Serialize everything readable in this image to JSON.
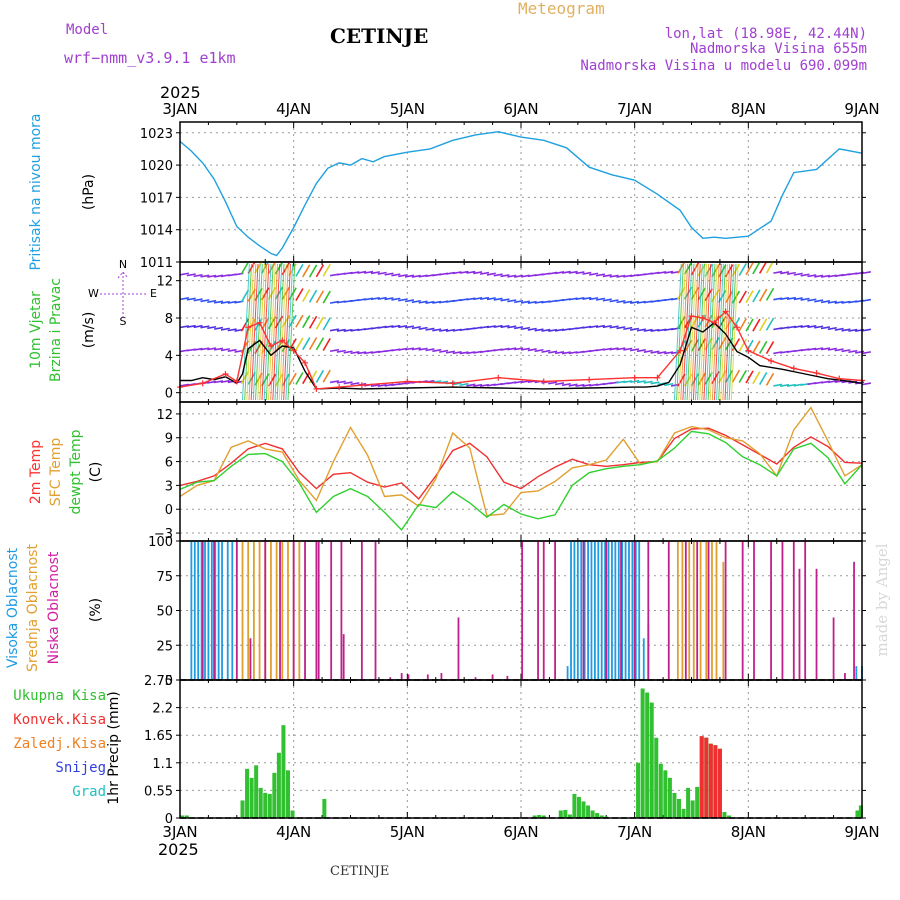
{
  "header": {
    "model_label": "Model",
    "model_name": "wrf−nmm_v3.9.1  e1km",
    "station": "CETINJE",
    "product": "Meteogram",
    "coords": "lon,lat (18.98E, 42.44N)",
    "elevation": "Nadmorska Visina 655m",
    "model_elevation": "Nadmorska Visina u modelu 690.099m",
    "year_top": "2025",
    "year_bottom": "2025",
    "footer_station": "CETINJE",
    "watermark": "made by Angel"
  },
  "chart_data": [
    {
      "type": "line",
      "panel": "pressure",
      "ylabels": [
        "Pritisak na nivou mora",
        "(hPa)"
      ],
      "ylim": [
        1011,
        1024
      ],
      "yticks": [
        1011,
        1014,
        1017,
        1020,
        1023
      ],
      "grid": true,
      "color": "#1fa0e0",
      "series": [
        {
          "x": [
            3.0,
            3.1,
            3.2,
            3.3,
            3.4,
            3.5,
            3.6,
            3.7,
            3.8,
            3.85,
            3.9,
            4.0,
            4.1,
            4.2,
            4.3,
            4.4,
            4.5,
            4.6,
            4.7,
            4.8,
            5.0,
            5.2,
            5.4,
            5.6,
            5.8,
            6.0,
            6.2,
            6.4,
            6.6,
            6.8,
            7.0,
            7.2,
            7.4,
            7.5,
            7.6,
            7.7,
            7.8,
            8.0,
            8.2,
            8.3,
            8.4,
            8.6,
            8.8,
            9.0
          ],
          "y": [
            1022.2,
            1021.3,
            1020.2,
            1018.7,
            1016.6,
            1014.3,
            1013.3,
            1012.5,
            1011.8,
            1011.6,
            1012.3,
            1014.2,
            1016.3,
            1018.3,
            1019.7,
            1020.2,
            1020.0,
            1020.6,
            1020.3,
            1020.8,
            1021.2,
            1021.5,
            1022.3,
            1022.8,
            1023.1,
            1022.6,
            1022.3,
            1021.6,
            1019.8,
            1019.1,
            1018.6,
            1017.3,
            1015.8,
            1014.2,
            1013.2,
            1013.3,
            1013.2,
            1013.4,
            1014.8,
            1017.2,
            1019.3,
            1019.6,
            1021.5,
            1021.1
          ]
        }
      ]
    },
    {
      "type": "line",
      "panel": "wind",
      "ylabels": [
        "10m Vjetar",
        "Brzina i Pravac",
        "(m/s)"
      ],
      "compass": {
        "n": "N",
        "w": "W",
        "e": "E",
        "s": "S"
      },
      "ylim": [
        -1,
        14
      ],
      "yticks": [
        0,
        4,
        8,
        12
      ],
      "grid": true,
      "series": [
        {
          "name": "speed",
          "color": "#000000",
          "x": [
            3.0,
            3.1,
            3.2,
            3.3,
            3.4,
            3.5,
            3.55,
            3.6,
            3.7,
            3.8,
            3.9,
            4.0,
            4.1,
            4.2,
            4.4,
            4.6,
            5.0,
            5.4,
            5.8,
            6.2,
            6.6,
            7.0,
            7.1,
            7.2,
            7.3,
            7.4,
            7.5,
            7.6,
            7.7,
            7.8,
            7.9,
            8.0,
            8.1,
            8.3,
            8.5,
            8.7,
            8.9,
            9.0
          ],
          "y": [
            1.3,
            1.3,
            1.6,
            1.4,
            1.7,
            1.0,
            2.0,
            4.7,
            5.6,
            4.0,
            5.0,
            4.8,
            2.3,
            0.4,
            0.5,
            0.4,
            0.5,
            0.6,
            0.5,
            0.4,
            0.5,
            0.6,
            0.6,
            0.7,
            1.1,
            3.0,
            7.0,
            6.5,
            7.5,
            6.3,
            4.4,
            3.8,
            2.9,
            2.5,
            2.0,
            1.5,
            1.2,
            1.0
          ]
        },
        {
          "name": "gust",
          "color": "#ff3030",
          "x": [
            3.0,
            3.2,
            3.4,
            3.5,
            3.6,
            3.7,
            3.8,
            3.9,
            4.0,
            4.1,
            4.2,
            4.4,
            4.6,
            5.0,
            5.4,
            5.8,
            6.2,
            6.6,
            7.0,
            7.2,
            7.4,
            7.5,
            7.6,
            7.7,
            7.8,
            7.9,
            8.0,
            8.2,
            8.4,
            8.6,
            8.8,
            9.0
          ],
          "y": [
            0.6,
            1.0,
            2.0,
            1.2,
            7.0,
            7.5,
            5.0,
            5.6,
            4.5,
            3.2,
            0.4,
            0.6,
            0.8,
            1.2,
            1.0,
            1.6,
            1.2,
            1.4,
            1.6,
            1.6,
            4.5,
            8.2,
            8.0,
            7.5,
            8.7,
            7.0,
            4.5,
            3.4,
            2.6,
            2.1,
            1.5,
            1.3
          ]
        }
      ],
      "barb_rows": [
        0,
        1,
        2,
        3,
        4
      ],
      "barb_colors": [
        "#8a2be2",
        "#3050f0",
        "#22c0c0",
        "#30c030",
        "#e0d020",
        "#f08020",
        "#f02020"
      ]
    },
    {
      "type": "line",
      "panel": "temperature",
      "ylabels": [
        "2m Temp",
        "SFC Temp",
        "dewpt Temp",
        "(C)"
      ],
      "ylabel_colors": [
        "#ff3030",
        "#e0a030",
        "#30c030",
        "#000000"
      ],
      "ylim": [
        -4,
        13.5
      ],
      "yticks": [
        -3,
        0,
        3,
        6,
        9,
        12
      ],
      "grid": true,
      "series": [
        {
          "name": "2m Temp",
          "color": "#f03030",
          "x": [
            3.0,
            3.15,
            3.3,
            3.45,
            3.6,
            3.75,
            3.9,
            4.05,
            4.2,
            4.35,
            4.5,
            4.65,
            4.8,
            4.95,
            5.1,
            5.25,
            5.4,
            5.55,
            5.7,
            5.85,
            6.0,
            6.15,
            6.3,
            6.45,
            6.6,
            6.75,
            6.9,
            7.05,
            7.2,
            7.35,
            7.5,
            7.65,
            7.8,
            7.95,
            8.1,
            8.25,
            8.4,
            8.55,
            8.7,
            8.85,
            9.0
          ],
          "y": [
            3.0,
            3.5,
            4.2,
            5.8,
            7.6,
            8.3,
            7.6,
            4.6,
            2.6,
            4.4,
            4.6,
            3.4,
            2.8,
            3.3,
            1.3,
            4.2,
            7.4,
            8.3,
            6.6,
            3.4,
            2.6,
            4.1,
            5.3,
            6.3,
            5.6,
            5.4,
            5.6,
            5.9,
            6.0,
            8.9,
            10.1,
            10.2,
            9.3,
            8.1,
            6.9,
            5.7,
            7.8,
            9.1,
            7.9,
            5.9,
            5.8
          ]
        },
        {
          "name": "SFC Temp",
          "color": "#e0a030",
          "x": [
            3.0,
            3.15,
            3.3,
            3.45,
            3.6,
            3.75,
            3.9,
            4.05,
            4.2,
            4.35,
            4.5,
            4.65,
            4.8,
            4.95,
            5.1,
            5.25,
            5.4,
            5.55,
            5.7,
            5.85,
            6.0,
            6.15,
            6.3,
            6.45,
            6.6,
            6.75,
            6.9,
            7.05,
            7.2,
            7.35,
            7.5,
            7.65,
            7.8,
            7.95,
            8.1,
            8.25,
            8.4,
            8.55,
            8.7,
            8.85,
            9.0
          ],
          "y": [
            1.6,
            3.0,
            3.6,
            7.8,
            8.6,
            7.6,
            7.2,
            3.6,
            1.1,
            6.0,
            10.3,
            6.8,
            1.6,
            1.8,
            0.4,
            3.8,
            9.6,
            7.7,
            -0.8,
            -0.6,
            2.1,
            2.3,
            3.5,
            5.2,
            5.6,
            6.2,
            8.8,
            5.7,
            6.0,
            9.6,
            10.4,
            10.0,
            9.0,
            8.6,
            7.0,
            4.2,
            10.0,
            12.8,
            8.6,
            4.2,
            5.6
          ]
        },
        {
          "name": "dewpt Temp",
          "color": "#30d030",
          "x": [
            3.0,
            3.15,
            3.3,
            3.45,
            3.6,
            3.75,
            3.9,
            4.05,
            4.2,
            4.35,
            4.5,
            4.65,
            4.8,
            4.95,
            5.1,
            5.25,
            5.4,
            5.55,
            5.7,
            5.85,
            6.0,
            6.15,
            6.3,
            6.45,
            6.6,
            6.75,
            6.9,
            7.05,
            7.2,
            7.35,
            7.5,
            7.65,
            7.8,
            7.95,
            8.1,
            8.25,
            8.4,
            8.55,
            8.7,
            8.85,
            9.0
          ],
          "y": [
            2.5,
            3.4,
            3.6,
            5.4,
            6.9,
            7.0,
            6.0,
            3.3,
            -0.4,
            1.6,
            2.6,
            1.6,
            -0.4,
            -2.6,
            0.6,
            0.2,
            2.2,
            0.8,
            -1.0,
            0.6,
            -0.6,
            -1.2,
            -0.7,
            3.0,
            4.6,
            5.1,
            5.4,
            5.6,
            6.1,
            7.7,
            9.8,
            9.5,
            8.4,
            6.6,
            5.6,
            4.2,
            7.6,
            8.3,
            6.5,
            3.2,
            5.6
          ]
        }
      ]
    },
    {
      "type": "bar",
      "panel": "cloud",
      "ylabels": [
        "Visoka Oblacnost",
        "Srednja Oblacnost",
        "Niska Oblacnost",
        "(%)"
      ],
      "ylabel_colors": [
        "#1f9be0",
        "#e0a030",
        "#d020a0",
        "#000000"
      ],
      "ylim": [
        0,
        100
      ],
      "yticks": [
        0,
        25,
        50,
        75,
        100
      ],
      "grid": true,
      "series": [
        {
          "name": "Visoka Oblacnost",
          "color": "#1f9be0",
          "x": [
            3.1,
            3.13,
            3.16,
            3.19,
            3.22,
            3.25,
            3.28,
            3.31,
            3.34,
            3.37,
            3.42,
            3.46,
            6.41,
            6.44,
            6.47,
            6.5,
            6.53,
            6.56,
            6.59,
            6.62,
            6.65,
            6.68,
            6.71,
            6.74,
            6.77,
            6.8,
            6.83,
            6.86,
            6.89,
            6.92,
            6.95,
            6.98,
            7.01,
            7.04,
            7.08,
            7.12,
            8.95,
            9.0
          ],
          "y": [
            100,
            100,
            100,
            100,
            100,
            100,
            100,
            100,
            100,
            100,
            100,
            100,
            10,
            100,
            100,
            100,
            100,
            100,
            100,
            100,
            100,
            100,
            100,
            100,
            100,
            100,
            100,
            100,
            100,
            100,
            100,
            100,
            100,
            100,
            30,
            40,
            10,
            10
          ]
        },
        {
          "name": "Srednja Oblacnost",
          "color": "#e0a030",
          "x": [
            3.55,
            3.6,
            3.65,
            3.7,
            3.75,
            3.8,
            3.85,
            3.9,
            3.95,
            4.0,
            4.05,
            7.38,
            7.42,
            7.48,
            7.52,
            7.58,
            7.63,
            7.68,
            7.72,
            7.78
          ],
          "y": [
            100,
            100,
            100,
            100,
            100,
            100,
            100,
            100,
            100,
            100,
            100,
            100,
            100,
            100,
            100,
            100,
            100,
            100,
            100,
            85
          ]
        },
        {
          "name": "Niska Oblacnost",
          "color": "#c0208c",
          "x": [
            3.2,
            3.3,
            3.5,
            3.62,
            3.75,
            3.88,
            4.0,
            4.1,
            4.2,
            4.22,
            4.33,
            4.42,
            4.44,
            4.6,
            4.72,
            4.85,
            4.95,
            5.01,
            5.18,
            5.3,
            5.45,
            5.6,
            5.75,
            5.88,
            6.01,
            6.15,
            6.2,
            6.3,
            6.55,
            6.75,
            6.88,
            7.0,
            7.12,
            7.3,
            7.45,
            7.55,
            7.65,
            7.8,
            7.95,
            8.05,
            8.2,
            8.3,
            8.4,
            8.45,
            8.5,
            8.6,
            8.75,
            8.85,
            8.93
          ],
          "y": [
            100,
            100,
            100,
            30,
            100,
            100,
            100,
            100,
            100,
            100,
            100,
            100,
            33,
            100,
            100,
            2,
            5,
            4,
            4,
            5,
            45,
            2,
            4,
            3,
            100,
            100,
            100,
            100,
            100,
            100,
            100,
            100,
            100,
            100,
            100,
            100,
            100,
            100,
            100,
            100,
            100,
            100,
            100,
            80,
            100,
            80,
            45,
            5,
            85
          ]
        }
      ]
    },
    {
      "type": "bar",
      "panel": "precip",
      "ylabels": [
        "1hr Precip (mm)"
      ],
      "legend": [
        "Ukupna Kisa",
        "Konvek.Kisa",
        "Zaledj.Kisa",
        "Snijeg",
        "Grad"
      ],
      "legend_colors": [
        "#30c030",
        "#f03030",
        "#f08020",
        "#3040e0",
        "#20c0c0"
      ],
      "ylim": [
        0,
        2.75
      ],
      "yticks": [
        0,
        0.55,
        1.1,
        1.65,
        2.2,
        2.75
      ],
      "grid": true,
      "series": [
        {
          "name": "Ukupna Kisa",
          "color": "#30c030",
          "x": [
            3.02,
            3.06,
            3.55,
            3.59,
            3.63,
            3.67,
            3.71,
            3.75,
            3.79,
            3.83,
            3.87,
            3.91,
            3.95,
            3.99,
            4.27,
            6.12,
            6.16,
            6.2,
            6.35,
            6.39,
            6.43,
            6.47,
            6.51,
            6.55,
            6.59,
            6.63,
            6.67,
            6.71,
            6.75,
            7.03,
            7.07,
            7.11,
            7.15,
            7.19,
            7.23,
            7.27,
            7.31,
            7.35,
            7.39,
            7.43,
            7.47,
            7.51,
            7.55,
            7.59,
            7.63,
            7.67,
            7.71,
            7.75,
            7.79,
            7.83,
            8.96,
            8.99
          ],
          "y": [
            0.05,
            0.05,
            0.35,
            0.98,
            0.8,
            1.05,
            0.6,
            0.5,
            0.48,
            0.9,
            1.3,
            1.85,
            0.95,
            0.15,
            0.38,
            0.05,
            0.06,
            0.05,
            0.15,
            0.16,
            0.07,
            0.48,
            0.42,
            0.33,
            0.25,
            0.15,
            0.1,
            0.05,
            0.03,
            1.1,
            2.58,
            2.5,
            2.3,
            1.6,
            1.08,
            0.95,
            0.8,
            0.5,
            0.38,
            0.18,
            0.6,
            0.35,
            0.62,
            1.63,
            1.6,
            1.48,
            1.45,
            1.38,
            0.12,
            0.05,
            0.15,
            0.25
          ]
        },
        {
          "name": "Konvek.Kisa",
          "color": "#f03030",
          "x": [
            7.59,
            7.63,
            7.67,
            7.71,
            7.75
          ],
          "y": [
            1.63,
            1.6,
            1.48,
            1.45,
            1.38
          ]
        }
      ],
      "xlabels": [
        "3JAN",
        "4JAN",
        "5JAN",
        "6JAN",
        "7JAN",
        "8JAN",
        "9JAN"
      ],
      "xlim": [
        3,
        9
      ]
    }
  ]
}
